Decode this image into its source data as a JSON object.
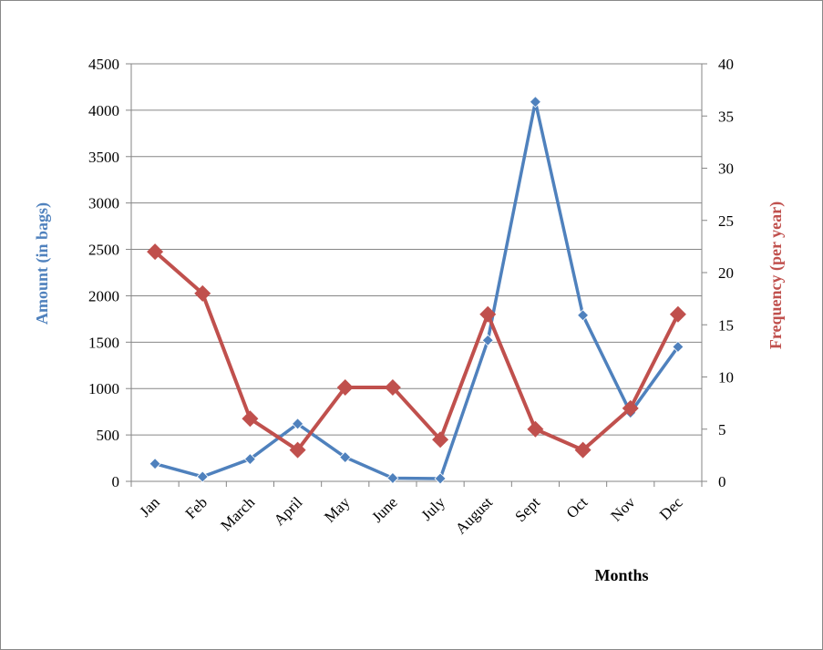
{
  "chart_data": {
    "type": "line",
    "title": "",
    "xlabel": "Months",
    "ylabel_left": "Amount (in bags)",
    "ylabel_right": "Frequency (per year)",
    "categories": [
      "Jan",
      "Feb",
      "March",
      "April",
      "May",
      "June",
      "July",
      "August",
      "Sept",
      "Oct",
      "Nov",
      "Dec"
    ],
    "y_left": {
      "min": 0,
      "max": 4500,
      "ticks": [
        0,
        500,
        1000,
        1500,
        2000,
        2500,
        3000,
        3500,
        4000,
        4500
      ]
    },
    "y_right": {
      "min": 0,
      "max": 40,
      "ticks": [
        0,
        5,
        10,
        15,
        20,
        25,
        30,
        35,
        40
      ]
    },
    "grid": "horizontal",
    "series": [
      {
        "axis": "left",
        "color": "#4f81bd",
        "marker": "diamond",
        "values": [
          190,
          50,
          240,
          620,
          260,
          35,
          30,
          1520,
          4090,
          1790,
          740,
          1450
        ]
      },
      {
        "axis": "right",
        "color": "#c0504d",
        "marker": "diamond",
        "values": [
          22,
          18,
          6,
          3,
          9,
          9,
          4,
          16,
          5,
          3,
          7,
          16
        ]
      }
    ]
  }
}
